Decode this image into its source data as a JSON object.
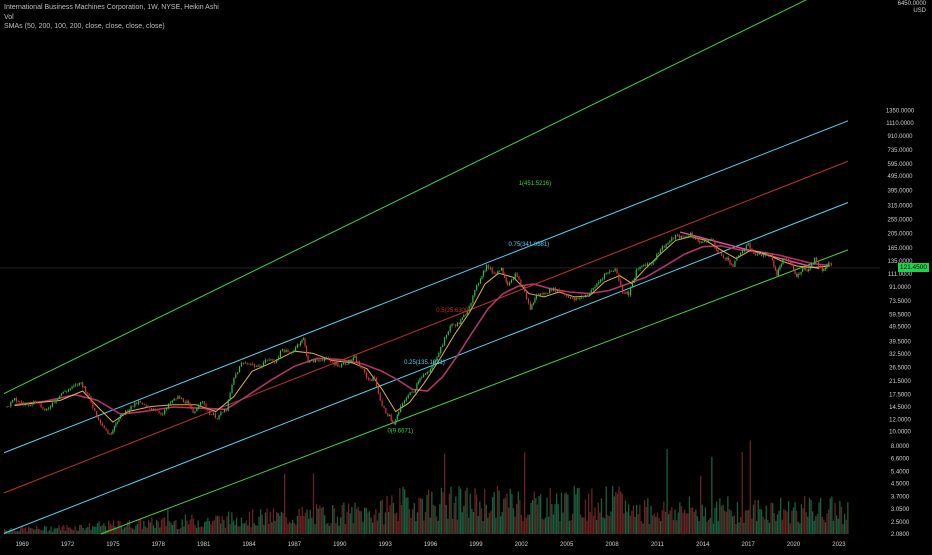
{
  "header": {
    "title": "International Business Machines Corporation, 1W, NYSE, Heikin Ashi",
    "vol_label": "Vol",
    "sma_label": "SMAs (50, 200, 100, 200, close, close, close, close)",
    "currency_top": "6450.0000",
    "currency": "USD"
  },
  "price_tag": "121.4500",
  "colors": {
    "background": "#000000",
    "up": "#2fbf4a",
    "down": "#d23a3a",
    "sma_fast": "#f5c542",
    "sma_slow": "#b03468",
    "fib_green": "#3fd23f",
    "fib_cyan": "#4fd3f0",
    "fib_red": "#c03030",
    "trend_pink": "#e0509a",
    "axis_text": "#cfcfcf"
  },
  "chart_data": {
    "type": "line",
    "title": "International Business Machines Corporation, 1W, NYSE, Heikin Ashi",
    "y_scale": "log",
    "xlabel": "",
    "ylabel": "",
    "price_ticks": [
      6450,
      1350,
      1110,
      910,
      735,
      595,
      495,
      395,
      315,
      255,
      205,
      165,
      135,
      111,
      91,
      73.5,
      59.5,
      49.5,
      39.5,
      32.5,
      26.5,
      21.5,
      17.5,
      14.5,
      12,
      10,
      8,
      6.6,
      5.4,
      4.5,
      3.7,
      3.05,
      2.5,
      2.08
    ],
    "price_tick_labels": [
      "6450.0000",
      "1350.0000",
      "1110.0000",
      "910.0000",
      "735.0000",
      "595.0000",
      "495.0000",
      "395.0000",
      "315.0000",
      "255.0000",
      "205.0000",
      "165.0000",
      "135.0000",
      "111.0000",
      "91.0000",
      "73.5000",
      "59.5000",
      "49.5000",
      "39.5000",
      "32.5000",
      "26.5000",
      "21.5000",
      "17.5000",
      "14.5000",
      "12.0000",
      "10.0000",
      "8.0000",
      "6.6000",
      "5.4000",
      "4.5000",
      "3.7000",
      "3.0500",
      "2.5000",
      "2.0800"
    ],
    "x_ticks": [
      1969,
      1972,
      1975,
      1978,
      1981,
      1984,
      1987,
      1990,
      1993,
      1996,
      1999,
      2002,
      2005,
      2008,
      2011,
      2014,
      2017,
      2020,
      2023
    ],
    "xlim": [
      1967.8,
      2023.6
    ],
    "price_series": [
      [
        1968.0,
        14.5
      ],
      [
        1968.5,
        16.2
      ],
      [
        1969.2,
        15.0
      ],
      [
        1970.0,
        15.8
      ],
      [
        1970.5,
        13.4
      ],
      [
        1971.0,
        15.4
      ],
      [
        1971.6,
        17.8
      ],
      [
        1972.3,
        19.5
      ],
      [
        1972.9,
        21.0
      ],
      [
        1973.3,
        18.0
      ],
      [
        1973.8,
        13.5
      ],
      [
        1974.3,
        11.0
      ],
      [
        1974.8,
        9.4
      ],
      [
        1975.2,
        11.5
      ],
      [
        1975.6,
        12.8
      ],
      [
        1976.2,
        14.5
      ],
      [
        1976.7,
        15.6
      ],
      [
        1977.2,
        14.4
      ],
      [
        1977.8,
        14.0
      ],
      [
        1978.3,
        13.0
      ],
      [
        1978.8,
        15.5
      ],
      [
        1979.3,
        16.8
      ],
      [
        1979.9,
        15.5
      ],
      [
        1980.3,
        13.2
      ],
      [
        1980.8,
        16.0
      ],
      [
        1981.4,
        13.2
      ],
      [
        1981.9,
        12.4
      ],
      [
        1982.5,
        14.0
      ],
      [
        1983.0,
        22.5
      ],
      [
        1983.5,
        28.0
      ],
      [
        1984.0,
        28.5
      ],
      [
        1984.6,
        26.5
      ],
      [
        1985.2,
        30.0
      ],
      [
        1985.7,
        29.0
      ],
      [
        1986.2,
        35.0
      ],
      [
        1986.7,
        32.5
      ],
      [
        1987.2,
        37.5
      ],
      [
        1987.6,
        41.0
      ],
      [
        1987.9,
        29.0
      ],
      [
        1988.5,
        29.5
      ],
      [
        1989.0,
        30.5
      ],
      [
        1989.5,
        28.5
      ],
      [
        1990.0,
        27.5
      ],
      [
        1990.6,
        29.0
      ],
      [
        1991.0,
        30.5
      ],
      [
        1991.4,
        26.5
      ],
      [
        1991.9,
        22.0
      ],
      [
        1992.3,
        22.5
      ],
      [
        1992.8,
        14.5
      ],
      [
        1993.3,
        12.5
      ],
      [
        1993.6,
        11.0
      ],
      [
        1993.9,
        13.5
      ],
      [
        1994.4,
        17.0
      ],
      [
        1994.9,
        18.5
      ],
      [
        1995.3,
        23.0
      ],
      [
        1995.9,
        24.5
      ],
      [
        1996.3,
        30.0
      ],
      [
        1996.8,
        38.0
      ],
      [
        1997.3,
        50.0
      ],
      [
        1997.9,
        52.0
      ],
      [
        1998.3,
        60.0
      ],
      [
        1998.8,
        78.0
      ],
      [
        1999.3,
        105.0
      ],
      [
        1999.7,
        125.0
      ],
      [
        2000.2,
        112.0
      ],
      [
        2000.7,
        120.0
      ],
      [
        2001.1,
        95.0
      ],
      [
        2001.6,
        110.0
      ],
      [
        2002.1,
        90.0
      ],
      [
        2002.6,
        65.0
      ],
      [
        2003.0,
        80.0
      ],
      [
        2003.5,
        82.0
      ],
      [
        2004.0,
        88.0
      ],
      [
        2004.5,
        86.0
      ],
      [
        2005.0,
        80.0
      ],
      [
        2005.5,
        74.0
      ],
      [
        2006.0,
        78.0
      ],
      [
        2006.5,
        82.0
      ],
      [
        2007.0,
        95.0
      ],
      [
        2007.5,
        110.0
      ],
      [
        2008.2,
        120.0
      ],
      [
        2008.7,
        85.0
      ],
      [
        2009.1,
        82.0
      ],
      [
        2009.6,
        115.0
      ],
      [
        2010.1,
        128.0
      ],
      [
        2010.6,
        130.0
      ],
      [
        2011.2,
        162.0
      ],
      [
        2011.7,
        178.0
      ],
      [
        2012.2,
        198.0
      ],
      [
        2012.7,
        192.0
      ],
      [
        2013.2,
        205.0
      ],
      [
        2013.6,
        185.0
      ],
      [
        2014.0,
        180.0
      ],
      [
        2014.6,
        188.0
      ],
      [
        2015.0,
        152.0
      ],
      [
        2015.6,
        140.0
      ],
      [
        2016.0,
        125.0
      ],
      [
        2016.5,
        155.0
      ],
      [
        2017.0,
        172.0
      ],
      [
        2017.5,
        148.0
      ],
      [
        2018.0,
        150.0
      ],
      [
        2018.5,
        145.0
      ],
      [
        2018.9,
        110.0
      ],
      [
        2019.3,
        138.0
      ],
      [
        2019.8,
        133.0
      ],
      [
        2020.2,
        105.0
      ],
      [
        2020.6,
        122.0
      ],
      [
        2021.0,
        118.0
      ],
      [
        2021.4,
        140.0
      ],
      [
        2021.9,
        118.0
      ],
      [
        2022.3,
        130.0
      ],
      [
        2022.6,
        124.0
      ]
    ],
    "sma_fast": [
      [
        1968.5,
        14.8
      ],
      [
        1970.0,
        15.5
      ],
      [
        1971.5,
        16.0
      ],
      [
        1973.0,
        18.5
      ],
      [
        1974.0,
        14.5
      ],
      [
        1975.0,
        11.5
      ],
      [
        1976.0,
        13.5
      ],
      [
        1977.5,
        14.6
      ],
      [
        1979.0,
        15.0
      ],
      [
        1980.5,
        15.0
      ],
      [
        1981.8,
        13.5
      ],
      [
        1983.0,
        17.0
      ],
      [
        1984.2,
        25.0
      ],
      [
        1985.5,
        28.5
      ],
      [
        1987.0,
        34.0
      ],
      [
        1988.2,
        33.0
      ],
      [
        1989.5,
        29.5
      ],
      [
        1990.8,
        28.5
      ],
      [
        1991.8,
        26.0
      ],
      [
        1992.8,
        19.0
      ],
      [
        1993.7,
        13.5
      ],
      [
        1994.6,
        15.5
      ],
      [
        1995.6,
        21.0
      ],
      [
        1996.6,
        30.0
      ],
      [
        1997.6,
        44.0
      ],
      [
        1998.6,
        62.0
      ],
      [
        1999.6,
        95.0
      ],
      [
        2000.5,
        112.0
      ],
      [
        2001.5,
        105.0
      ],
      [
        2002.5,
        82.0
      ],
      [
        2003.5,
        78.0
      ],
      [
        2004.5,
        84.0
      ],
      [
        2005.5,
        78.0
      ],
      [
        2006.5,
        79.0
      ],
      [
        2007.5,
        98.0
      ],
      [
        2008.5,
        108.0
      ],
      [
        2009.3,
        96.0
      ],
      [
        2010.2,
        120.0
      ],
      [
        2011.2,
        150.0
      ],
      [
        2012.2,
        185.0
      ],
      [
        2013.2,
        196.0
      ],
      [
        2014.2,
        185.0
      ],
      [
        2015.2,
        160.0
      ],
      [
        2016.2,
        140.0
      ],
      [
        2017.2,
        160.0
      ],
      [
        2018.2,
        150.0
      ],
      [
        2019.2,
        135.0
      ],
      [
        2020.2,
        125.0
      ],
      [
        2021.2,
        122.0
      ],
      [
        2022.4,
        125.0
      ]
    ],
    "sma_slow": [
      [
        1968.5,
        15.0
      ],
      [
        1970.5,
        15.8
      ],
      [
        1972.5,
        17.5
      ],
      [
        1974.0,
        16.0
      ],
      [
        1975.5,
        13.0
      ],
      [
        1977.0,
        13.5
      ],
      [
        1979.0,
        14.5
      ],
      [
        1981.0,
        14.2
      ],
      [
        1982.5,
        14.0
      ],
      [
        1984.0,
        17.5
      ],
      [
        1985.5,
        22.0
      ],
      [
        1987.0,
        27.0
      ],
      [
        1988.5,
        30.5
      ],
      [
        1990.0,
        30.0
      ],
      [
        1991.5,
        28.0
      ],
      [
        1992.8,
        25.0
      ],
      [
        1993.8,
        22.0
      ],
      [
        1994.8,
        19.0
      ],
      [
        1995.8,
        18.5
      ],
      [
        1996.8,
        23.0
      ],
      [
        1997.8,
        32.0
      ],
      [
        1998.8,
        46.0
      ],
      [
        1999.8,
        65.0
      ],
      [
        2000.8,
        82.0
      ],
      [
        2001.8,
        92.0
      ],
      [
        2002.8,
        95.0
      ],
      [
        2004.0,
        88.0
      ],
      [
        2005.2,
        84.0
      ],
      [
        2006.5,
        82.0
      ],
      [
        2007.8,
        86.0
      ],
      [
        2009.0,
        95.0
      ],
      [
        2010.2,
        105.0
      ],
      [
        2011.5,
        125.0
      ],
      [
        2012.8,
        150.0
      ],
      [
        2014.0,
        168.0
      ],
      [
        2015.2,
        170.0
      ],
      [
        2016.5,
        160.0
      ],
      [
        2017.8,
        155.0
      ],
      [
        2019.0,
        148.0
      ],
      [
        2020.2,
        138.0
      ],
      [
        2021.2,
        130.0
      ],
      [
        2022.4,
        126.0
      ]
    ],
    "fib_lines": [
      {
        "label": "1(451.5216)",
        "color": "#3fd23f",
        "p1": [
          1967.8,
          17.8
        ],
        "p2": [
          2023.6,
          10000
        ]
      },
      {
        "label": "0.75(341.0581)",
        "color": "#4fd3f0",
        "p1": [
          1967.8,
          7.2
        ],
        "p2": [
          2023.6,
          1150
        ]
      },
      {
        "label": "0.5(35.6300)",
        "color": "#c03030",
        "p1": [
          1967.8,
          3.9
        ],
        "p2": [
          2023.6,
          620
        ]
      },
      {
        "label": "0.25(135.1921)",
        "color": "#4fd3f0",
        "p1": [
          1967.8,
          2.1
        ],
        "p2": [
          2023.6,
          330
        ]
      },
      {
        "label": "0(9.6671)",
        "color": "#3fd23f",
        "p1": [
          1974.2,
          2.08
        ],
        "p2": [
          2023.6,
          160
        ]
      }
    ],
    "fib_labels": [
      {
        "text": "1(451.5216)",
        "x": 2002.9,
        "y": 430,
        "color": "#3fd23f"
      },
      {
        "text": "0.75(341.0581)",
        "x": 2002.5,
        "y": 170,
        "color": "#4fd3f0"
      },
      {
        "text": "0.5(35.6300)",
        "x": 1997.5,
        "y": 62,
        "color": "#c03030"
      },
      {
        "text": "0.25(135.1921)",
        "x": 1995.6,
        "y": 28,
        "color": "#4fd3f0"
      },
      {
        "text": "0(9.6671)",
        "x": 1994.0,
        "y": 9.8,
        "color": "#3fd23f"
      }
    ],
    "trend_lines": [
      {
        "color": "#e0509a",
        "p1": [
          2012.5,
          210
        ],
        "p2": [
          2021.7,
          120
        ]
      }
    ]
  }
}
